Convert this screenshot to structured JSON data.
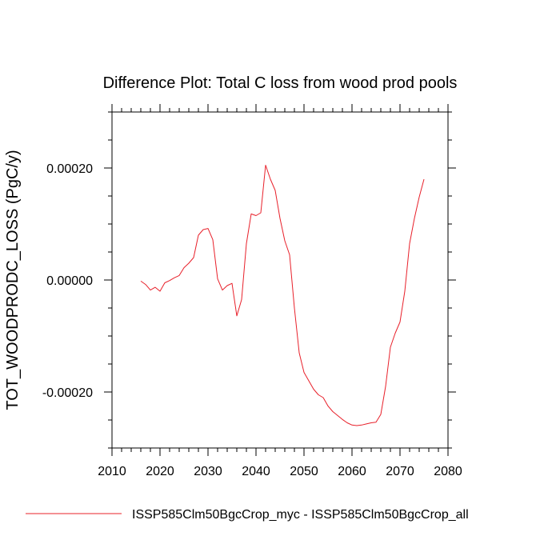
{
  "chart_data": {
    "type": "line",
    "title": "Difference Plot: Total C loss from wood prod pools",
    "xlabel": "",
    "ylabel": "TOT_WOODPRODC_LOSS  (PgC/y)",
    "xlim": [
      2010,
      2080
    ],
    "ylim": [
      -0.0003,
      0.0003
    ],
    "x_ticks": [
      2010,
      2020,
      2030,
      2040,
      2050,
      2060,
      2070,
      2080
    ],
    "y_ticks": [
      -0.0002,
      0.0,
      0.0002
    ],
    "x_tick_labels": [
      "2010",
      "2020",
      "2030",
      "2040",
      "2050",
      "2060",
      "2070",
      "2080"
    ],
    "y_tick_labels": [
      "-0.00020",
      "0.00000",
      "0.00020"
    ],
    "grid": false,
    "legend_position": "bottom",
    "series": [
      {
        "name": "ISSP585Clm50BgcCrop_myc - ISSP585Clm50BgcCrop_all",
        "color": "#e8202a",
        "x": [
          2016,
          2017,
          2018,
          2019,
          2020,
          2021,
          2022,
          2023,
          2024,
          2025,
          2026,
          2027,
          2028,
          2029,
          2030,
          2031,
          2032,
          2033,
          2034,
          2035,
          2036,
          2037,
          2038,
          2039,
          2040,
          2041,
          2042,
          2043,
          2044,
          2045,
          2046,
          2047,
          2048,
          2049,
          2050,
          2051,
          2052,
          2053,
          2054,
          2055,
          2056,
          2057,
          2058,
          2059,
          2060,
          2061,
          2062,
          2063,
          2064,
          2065,
          2066,
          2067,
          2068,
          2069,
          2070,
          2071,
          2072,
          2073,
          2074,
          2075
        ],
        "y": [
          -2e-06,
          -8e-06,
          -1.8e-05,
          -1.3e-05,
          -2e-05,
          -5e-06,
          -1e-06,
          4e-06,
          8e-06,
          2.2e-05,
          3e-05,
          4e-05,
          8e-05,
          9e-05,
          9.2e-05,
          7.2e-05,
          2e-06,
          -1.8e-05,
          -1e-05,
          -6e-06,
          -6.4e-05,
          -3.5e-05,
          6.5e-05,
          0.000118,
          0.000115,
          0.00012,
          0.000205,
          0.00018,
          0.00016,
          0.00011,
          7e-05,
          4.5e-05,
          -5e-05,
          -0.00013,
          -0.000165,
          -0.00018,
          -0.000195,
          -0.000205,
          -0.00021,
          -0.000225,
          -0.000235,
          -0.000242,
          -0.000249,
          -0.000255,
          -0.000259,
          -0.00026,
          -0.000259,
          -0.000257,
          -0.000255,
          -0.000254,
          -0.00024,
          -0.00019,
          -0.00012,
          -9.5e-05,
          -7.5e-05,
          -2e-05,
          6.5e-05,
          0.00011,
          0.000148,
          0.00018
        ]
      }
    ]
  }
}
